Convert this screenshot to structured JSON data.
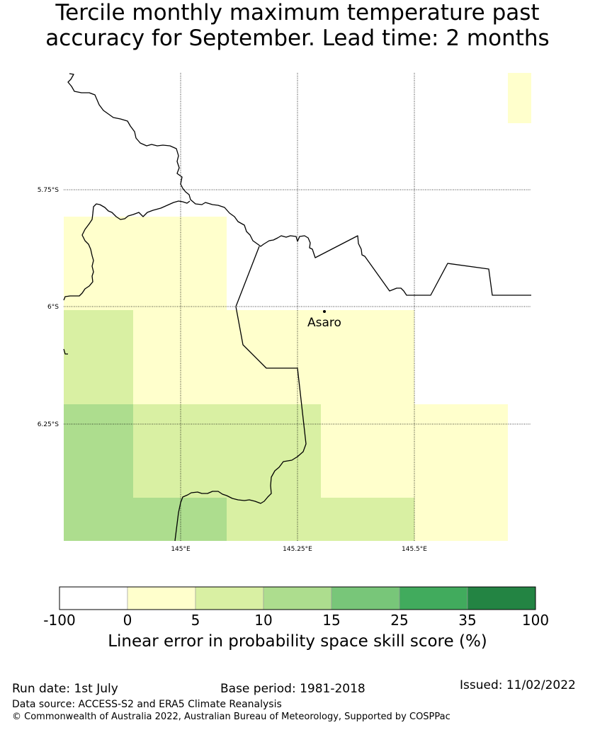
{
  "title": {
    "line1": "Tercile monthly maximum temperature past",
    "line2": "accuracy for September. Lead time: 2 months"
  },
  "map": {
    "lat_ticks": [
      "5.75°S",
      "6°S",
      "6.25°S"
    ],
    "lon_ticks": [
      "145°E",
      "145.25°E",
      "145.5°E"
    ],
    "place_label": "Asaro",
    "colors": {
      "c0_5": "#ffffcc",
      "c5_10": "#d9f0a3",
      "c10_15": "#addd8e",
      "border": "#000000",
      "grid": "#000000"
    },
    "cells": [
      {
        "lon": [
          144.75,
          145.1
        ],
        "lat": [
          -5.81,
          -6.0
        ],
        "skill_class": "0-5"
      },
      {
        "lon": [
          145.1,
          145.25
        ],
        "lat": [
          -6.0,
          -6.2
        ],
        "skill_class": "0-5"
      },
      {
        "lon": [
          145.25,
          145.5
        ],
        "lat": [
          -6.0,
          -6.2
        ],
        "skill_class": "0-5"
      },
      {
        "lon": [
          145.7,
          145.75
        ],
        "lat": [
          -5.5,
          -5.6
        ],
        "skill_class": "0-5"
      },
      {
        "lon": [
          145.3,
          145.5
        ],
        "lat": [
          -6.2,
          -6.4
        ],
        "skill_class": "0-5"
      },
      {
        "lon": [
          145.5,
          145.7
        ],
        "lat": [
          -6.2,
          -6.5
        ],
        "skill_class": "0-5"
      },
      {
        "lon": [
          144.9,
          145.1
        ],
        "lat": [
          -6.0,
          -6.2
        ],
        "skill_class": "0-5"
      },
      {
        "lon": [
          144.75,
          144.9
        ],
        "lat": [
          -6.0,
          -6.2
        ],
        "skill_class": "5-10"
      },
      {
        "lon": [
          144.9,
          145.3
        ],
        "lat": [
          -6.2,
          -6.4
        ],
        "skill_class": "5-10"
      },
      {
        "lon": [
          145.1,
          145.5
        ],
        "lat": [
          -6.4,
          -6.5
        ],
        "skill_class": "5-10"
      },
      {
        "lon": [
          144.75,
          144.9
        ],
        "lat": [
          -6.2,
          -6.5
        ],
        "skill_class": "10-15"
      },
      {
        "lon": [
          144.9,
          145.1
        ],
        "lat": [
          -6.4,
          -6.5
        ],
        "skill_class": "10-15"
      }
    ]
  },
  "colorbar": {
    "ticks": [
      "-100",
      "0",
      "5",
      "10",
      "15",
      "25",
      "35",
      "100"
    ],
    "colors": [
      "#ffffff",
      "#ffffcc",
      "#d9f0a3",
      "#addd8e",
      "#78c679",
      "#41ab5d",
      "#238443"
    ],
    "label": "Linear error in probability space skill score (%)"
  },
  "footer": {
    "run_date": "Run date: 1st July",
    "base_period": "Base period: 1981-2018",
    "issued": "Issued: 11/02/2022",
    "source": "Data source: ACCESS-S2 and ERA5 Climate Reanalysis",
    "copyright": "© Commonwealth of Australia 2022, Australian Bureau of Meteorology, Supported by COSPPac"
  }
}
